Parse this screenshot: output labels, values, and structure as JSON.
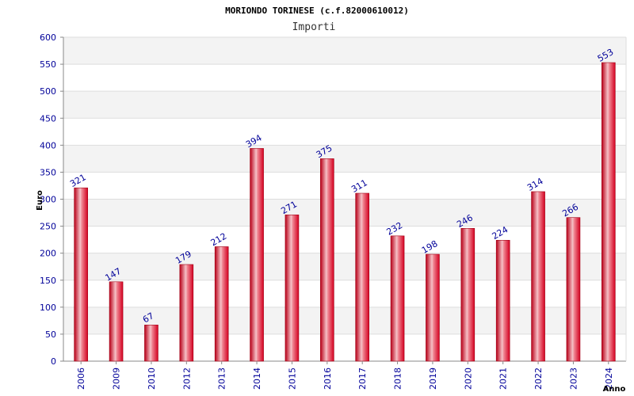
{
  "chart_data": {
    "type": "bar",
    "title": "MORIONDO TORINESE (c.f.82000610012)",
    "subtitle": "Importi",
    "ylabel": "Euro",
    "xlabel": "Anno",
    "ylim": [
      0,
      600
    ],
    "yticks": [
      0,
      50,
      100,
      150,
      200,
      250,
      300,
      350,
      400,
      450,
      500,
      550,
      600
    ],
    "categories": [
      "2006",
      "2009",
      "2010",
      "2012",
      "2013",
      "2014",
      "2015",
      "2016",
      "2017",
      "2018",
      "2019",
      "2020",
      "2021",
      "2022",
      "2023",
      "2024"
    ],
    "values": [
      321,
      147,
      67,
      179,
      212,
      394,
      271,
      375,
      311,
      232,
      198,
      246,
      224,
      314,
      266,
      553
    ],
    "grid": true,
    "legend": "none",
    "colors": {
      "bar_edge": "#c0001a",
      "bar_center": "#f4b0b8",
      "bar_main": "#e8162e",
      "band": "#f3f3f3",
      "grid": "#dddddd",
      "axis": "#888888",
      "label": "#000099"
    }
  }
}
